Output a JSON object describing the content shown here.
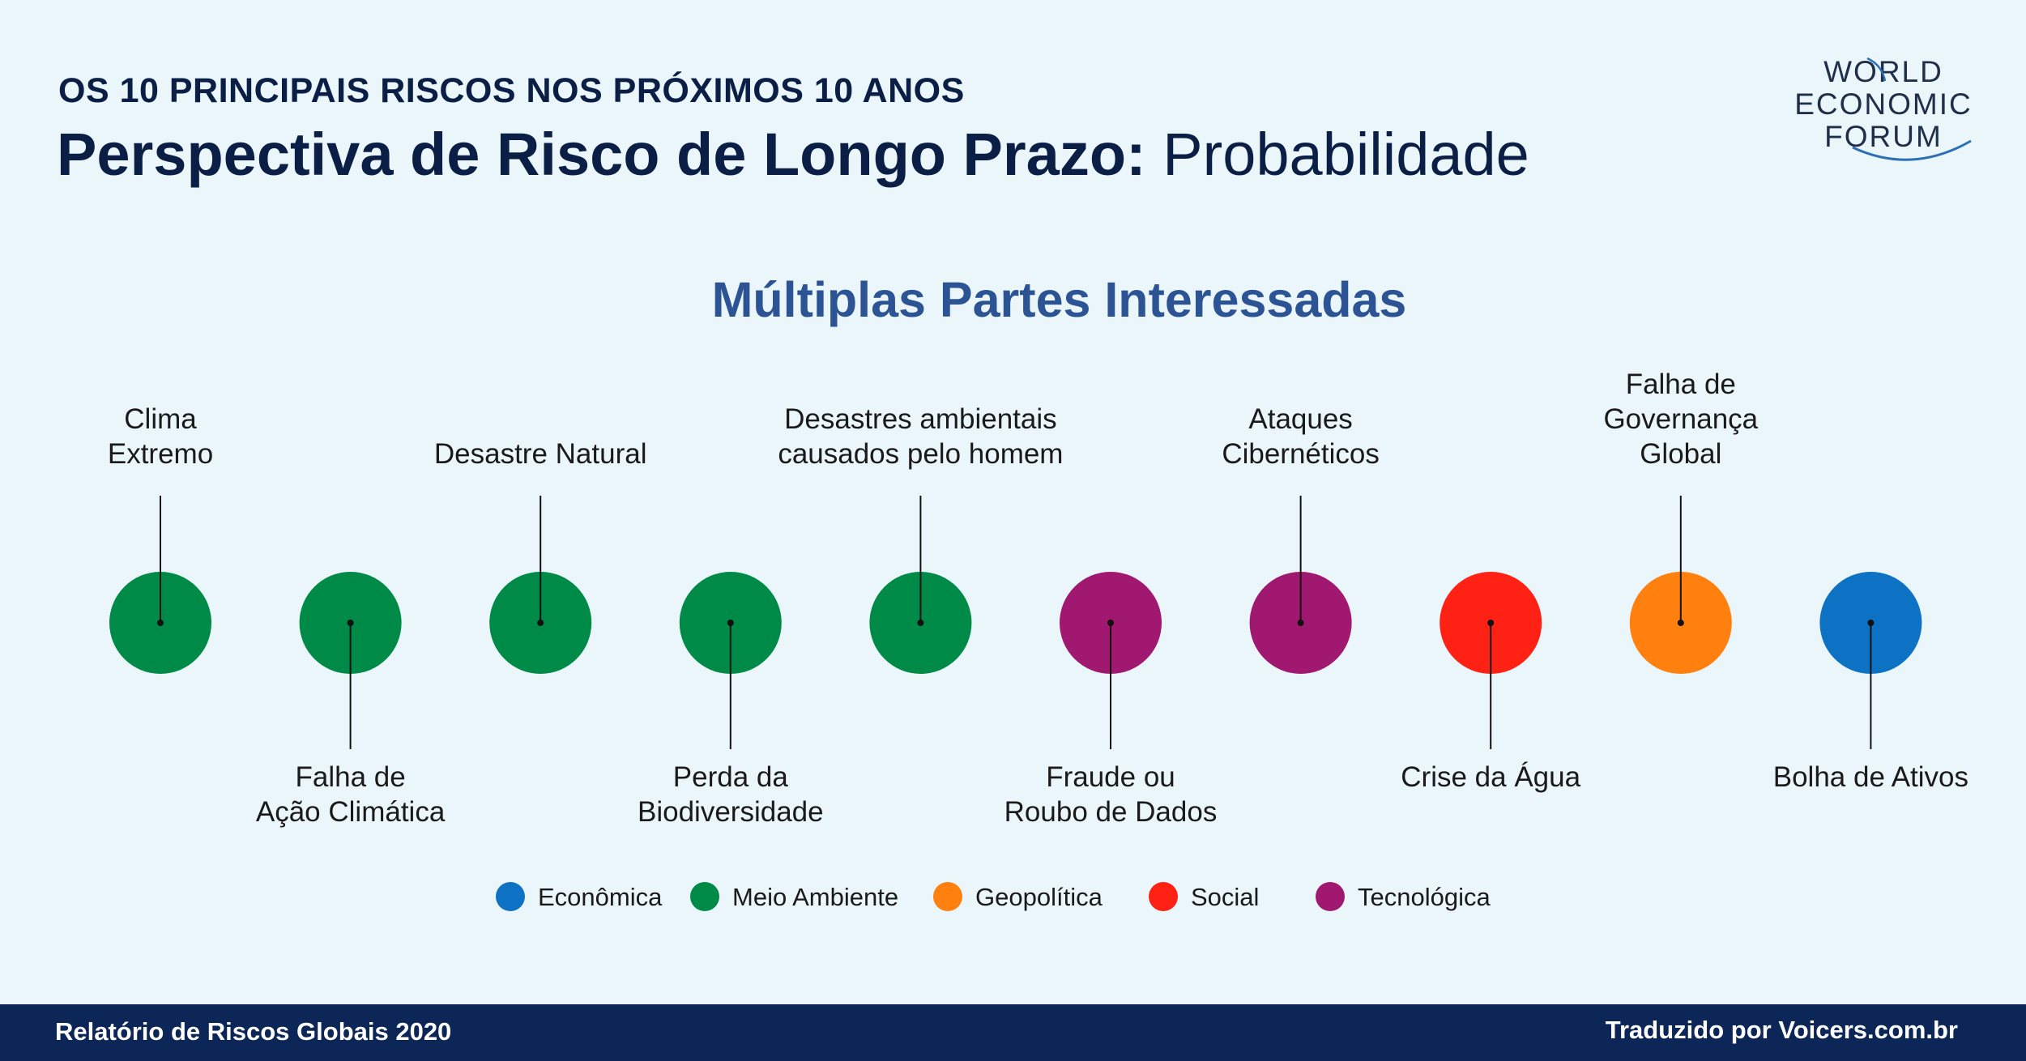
{
  "header": {
    "kicker": "OS 10 PRINCIPAIS RISCOS NOS PRÓXIMOS 10 ANOS",
    "title_bold": "Perspectiva de Risco de Longo Prazo:",
    "title_regular": "Probabilidade"
  },
  "logo": {
    "line1": "WORLD",
    "line2": "ECONOMIC",
    "line3": "FORUM"
  },
  "subtitle": "Múltiplas Partes Interessadas",
  "colors": {
    "economica": "#0e72c4",
    "meio_ambiente": "#008a47",
    "geopolitica": "#ff800e",
    "social": "#ff2114",
    "tecnologica": "#a0186f"
  },
  "risks": [
    {
      "rank": 1,
      "lines": [
        "Clima",
        "Extremo"
      ],
      "category": "meio_ambiente"
    },
    {
      "rank": 2,
      "lines": [
        "Falha de",
        "Ação Climática"
      ],
      "category": "meio_ambiente"
    },
    {
      "rank": 3,
      "lines": [
        "Desastre Natural"
      ],
      "category": "meio_ambiente"
    },
    {
      "rank": 4,
      "lines": [
        "Perda da",
        "Biodiversidade"
      ],
      "category": "meio_ambiente"
    },
    {
      "rank": 5,
      "lines": [
        "Desastres ambientais",
        "causados pelo homem"
      ],
      "category": "meio_ambiente"
    },
    {
      "rank": 6,
      "lines": [
        "Fraude ou",
        "Roubo de Dados"
      ],
      "category": "tecnologica"
    },
    {
      "rank": 7,
      "lines": [
        "Ataques",
        "Cibernéticos"
      ],
      "category": "tecnologica"
    },
    {
      "rank": 8,
      "lines": [
        "Crise da Água"
      ],
      "category": "social"
    },
    {
      "rank": 9,
      "lines": [
        "Falha de",
        "Governança",
        "Global"
      ],
      "category": "geopolitica"
    },
    {
      "rank": 10,
      "lines": [
        "Bolha de Ativos"
      ],
      "category": "economica"
    }
  ],
  "legend": [
    {
      "label": "Econômica",
      "category": "economica"
    },
    {
      "label": "Meio Ambiente",
      "category": "meio_ambiente"
    },
    {
      "label": "Geopolítica",
      "category": "geopolitica"
    },
    {
      "label": "Social",
      "category": "social"
    },
    {
      "label": "Tecnológica",
      "category": "tecnologica"
    }
  ],
  "footer": {
    "left": "Relatório de Riscos Globais 2020",
    "right": "Traduzido por Voicers.com.br"
  }
}
